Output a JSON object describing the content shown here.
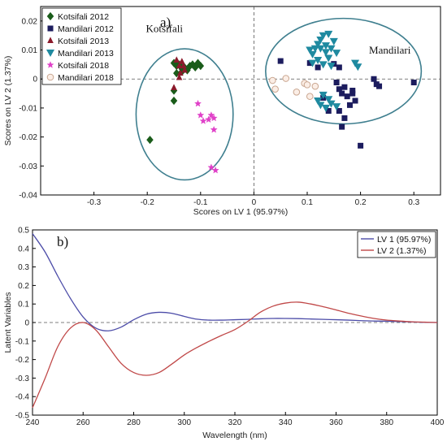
{
  "chart_data": [
    {
      "type": "scatter",
      "panel_label": "a)",
      "xlabel": "Scores on LV 1 (95.97%)",
      "ylabel": "Scores on LV 2 (1.37%)",
      "xlim": [
        -0.4,
        0.35
      ],
      "ylim": [
        -0.04,
        0.025
      ],
      "xticks": [
        "-0.3",
        "-0.2",
        "-0.1",
        "0",
        "0.1",
        "0.2",
        "0.3"
      ],
      "yticks": [
        "0.02",
        "0.01",
        "0",
        "-0.01",
        "-0.02",
        "-0.03",
        "-0.04"
      ],
      "legend_position": "top-left",
      "group_labels": [
        {
          "text": "Kotsifali",
          "x": -0.168,
          "y": 0.0162
        },
        {
          "text": "Mandilari",
          "x": 0.255,
          "y": 0.0088
        }
      ],
      "ellipses": [
        {
          "name": "Kotsifali",
          "cx": -0.13,
          "cy": -0.0122,
          "rx": 0.091,
          "ry": 0.0226,
          "color": "#3f7f8f"
        },
        {
          "name": "Mandilari",
          "cx": 0.168,
          "cy": 0.0027,
          "rx": 0.146,
          "ry": 0.0182,
          "color": "#3f7f8f"
        }
      ],
      "series": [
        {
          "name": "Kotsifali 2012",
          "marker": "diamond",
          "color": "#1a5c1a",
          "points": [
            [
              -0.15,
              0.0055
            ],
            [
              -0.145,
              0.0045
            ],
            [
              -0.14,
              0.005
            ],
            [
              -0.135,
              0.0035
            ],
            [
              -0.13,
              0.004
            ],
            [
              -0.125,
              0.003
            ],
            [
              -0.12,
              0.0045
            ],
            [
              -0.115,
              0.005
            ],
            [
              -0.11,
              0.004
            ],
            [
              -0.105,
              0.0055
            ],
            [
              -0.1,
              0.0045
            ],
            [
              -0.145,
              0.002
            ],
            [
              -0.135,
              0.0025
            ],
            [
              -0.15,
              -0.004
            ],
            [
              -0.15,
              -0.0075
            ],
            [
              -0.195,
              -0.021
            ]
          ]
        },
        {
          "name": "Mandilari 2012",
          "marker": "square",
          "color": "#1c1c5e",
          "points": [
            [
              0.05,
              0.0062
            ],
            [
              0.105,
              0.0055
            ],
            [
              0.12,
              0.004
            ],
            [
              0.15,
              0.0052
            ],
            [
              0.16,
              0.004
            ],
            [
              0.155,
              -0.0012
            ],
            [
              0.16,
              -0.0035
            ],
            [
              0.165,
              -0.005
            ],
            [
              0.17,
              -0.0028
            ],
            [
              0.175,
              -0.006
            ],
            [
              0.18,
              -0.009
            ],
            [
              0.185,
              -0.004
            ],
            [
              0.185,
              -0.005
            ],
            [
              0.19,
              -0.0075
            ],
            [
              0.16,
              -0.011
            ],
            [
              0.17,
              -0.0135
            ],
            [
              0.165,
              -0.0165
            ],
            [
              0.2,
              -0.023
            ],
            [
              0.225,
              0.0
            ],
            [
              0.23,
              -0.0018
            ],
            [
              0.235,
              -0.0025
            ],
            [
              0.3,
              -0.0012
            ],
            [
              0.13,
              -0.0065
            ],
            [
              0.14,
              -0.011
            ]
          ]
        },
        {
          "name": "Kotsifali 2013",
          "marker": "triangle-up",
          "color": "#8b1a2b",
          "points": [
            [
              -0.145,
              0.0065
            ],
            [
              -0.14,
              0.0045
            ],
            [
              -0.135,
              0.006
            ],
            [
              -0.13,
              0.003
            ],
            [
              -0.14,
              0.0005
            ],
            [
              -0.15,
              -0.003
            ],
            [
              -0.138,
              0.002
            ],
            [
              -0.132,
              0.0045
            ]
          ]
        },
        {
          "name": "Mandilari 2013",
          "marker": "triangle-down",
          "color": "#1f8aa0",
          "points": [
            [
              0.105,
              0.01
            ],
            [
              0.11,
              0.0085
            ],
            [
              0.115,
              0.0105
            ],
            [
              0.12,
              0.012
            ],
            [
              0.125,
              0.0135
            ],
            [
              0.13,
              0.015
            ],
            [
              0.135,
              0.0115
            ],
            [
              0.14,
              0.0155
            ],
            [
              0.145,
              0.0105
            ],
            [
              0.15,
              0.013
            ],
            [
              0.155,
              0.009
            ],
            [
              0.12,
              0.0065
            ],
            [
              0.13,
              0.005
            ],
            [
              0.14,
              0.0072
            ],
            [
              0.145,
              0.0045
            ],
            [
              0.11,
              0.0055
            ],
            [
              0.135,
              0.0092
            ],
            [
              0.125,
              0.0105
            ],
            [
              0.19,
              0.0055
            ],
            [
              0.195,
              0.0042
            ],
            [
              0.13,
              -0.0055
            ],
            [
              0.12,
              -0.0075
            ],
            [
              0.14,
              -0.007
            ],
            [
              0.135,
              -0.01
            ],
            [
              0.145,
              -0.0085
            ],
            [
              0.155,
              -0.0095
            ],
            [
              0.125,
              -0.009
            ]
          ]
        },
        {
          "name": "Kotsifali 2018",
          "marker": "star",
          "color": "#e040c8",
          "points": [
            [
              -0.105,
              -0.0085
            ],
            [
              -0.1,
              -0.0125
            ],
            [
              -0.095,
              -0.0145
            ],
            [
              -0.085,
              -0.014
            ],
            [
              -0.08,
              -0.0125
            ],
            [
              -0.075,
              -0.0135
            ],
            [
              -0.075,
              -0.0175
            ],
            [
              -0.08,
              -0.0305
            ],
            [
              -0.072,
              -0.0315
            ]
          ]
        },
        {
          "name": "Mandilari 2018",
          "marker": "circle",
          "color": "#c9a690",
          "points": [
            [
              0.035,
              -0.0005
            ],
            [
              0.04,
              -0.0035
            ],
            [
              0.06,
              0.0002
            ],
            [
              0.08,
              -0.0045
            ],
            [
              0.095,
              -0.0015
            ],
            [
              0.1,
              -0.002
            ],
            [
              0.105,
              -0.006
            ],
            [
              0.115,
              -0.0025
            ]
          ]
        }
      ]
    },
    {
      "type": "line",
      "panel_label": "b)",
      "xlabel": "Wavelength (nm)",
      "ylabel": "Latent Variables",
      "xlim": [
        240,
        400
      ],
      "ylim": [
        -0.5,
        0.5
      ],
      "xticks": [
        "240",
        "260",
        "280",
        "300",
        "320",
        "340",
        "360",
        "380",
        "400"
      ],
      "yticks": [
        "0.5",
        "0.4",
        "0.3",
        "0.2",
        "0.1",
        "0",
        "-0.1",
        "-0.2",
        "-0.3",
        "-0.4",
        "-0.5"
      ],
      "legend_position": "top-right",
      "x": [
        240,
        245,
        250,
        255,
        260,
        265,
        270,
        275,
        280,
        285,
        290,
        295,
        300,
        305,
        310,
        315,
        320,
        325,
        330,
        335,
        340,
        345,
        350,
        355,
        360,
        365,
        370,
        375,
        380,
        385,
        390,
        395,
        400
      ],
      "series": [
        {
          "name": "LV 1 (95.97%)",
          "color": "#4c4ca8",
          "values": [
            0.48,
            0.38,
            0.25,
            0.13,
            0.03,
            -0.03,
            -0.045,
            -0.025,
            0.015,
            0.045,
            0.055,
            0.05,
            0.033,
            0.018,
            0.013,
            0.013,
            0.015,
            0.017,
            0.02,
            0.022,
            0.022,
            0.021,
            0.019,
            0.017,
            0.015,
            0.013,
            0.01,
            0.008,
            0.007,
            0.005,
            0.003,
            0.001,
            0.0
          ]
        },
        {
          "name": "LV 2 (1.37%)",
          "color": "#c04848",
          "values": [
            -0.46,
            -0.3,
            -0.13,
            -0.03,
            0.0,
            -0.04,
            -0.13,
            -0.22,
            -0.27,
            -0.285,
            -0.27,
            -0.225,
            -0.175,
            -0.135,
            -0.1,
            -0.068,
            -0.038,
            0.005,
            0.055,
            0.088,
            0.105,
            0.11,
            0.1,
            0.085,
            0.068,
            0.05,
            0.035,
            0.022,
            0.013,
            0.008,
            0.004,
            0.002,
            0.0
          ]
        }
      ]
    }
  ]
}
